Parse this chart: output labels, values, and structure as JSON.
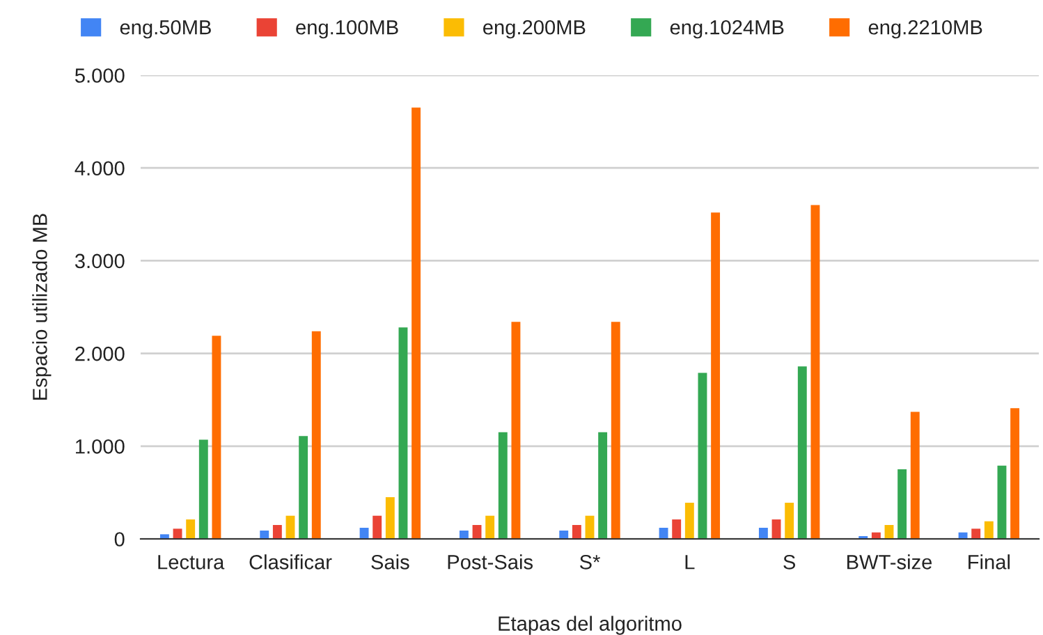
{
  "chart_data": {
    "type": "bar",
    "xlabel": "Etapas del algoritmo",
    "ylabel": "Espacio utilizado MB",
    "categories": [
      "Lectura",
      "Clasificar",
      "Sais",
      "Post-Sais",
      "S*",
      "L",
      "S",
      "BWT-size",
      "Final"
    ],
    "series": [
      {
        "name": "eng.50MB",
        "color": "#4285f4",
        "values": [
          50,
          90,
          120,
          90,
          90,
          120,
          120,
          30,
          70
        ]
      },
      {
        "name": "eng.100MB",
        "color": "#ea4335",
        "values": [
          110,
          150,
          250,
          150,
          150,
          210,
          210,
          70,
          110
        ]
      },
      {
        "name": "eng.200MB",
        "color": "#fbbc04",
        "values": [
          210,
          250,
          450,
          250,
          250,
          390,
          390,
          150,
          190
        ]
      },
      {
        "name": "eng.1024MB",
        "color": "#34a853",
        "values": [
          1070,
          1110,
          2280,
          1150,
          1150,
          1790,
          1860,
          750,
          790
        ]
      },
      {
        "name": "eng.2210MB",
        "color": "#ff6d01",
        "values": [
          2190,
          2240,
          4650,
          2340,
          2340,
          3520,
          3600,
          1370,
          1410
        ]
      }
    ],
    "ylim": [
      0,
      5000
    ],
    "yticks": [
      0,
      {
        "value": 1000,
        "label": "1.000"
      },
      {
        "value": 2000,
        "label": "2.000"
      },
      {
        "value": 3000,
        "label": "3.000"
      },
      {
        "value": 4000,
        "label": "4.000"
      },
      {
        "value": 5000,
        "label": "5.000"
      }
    ],
    "grid": "y",
    "legend": "top"
  }
}
